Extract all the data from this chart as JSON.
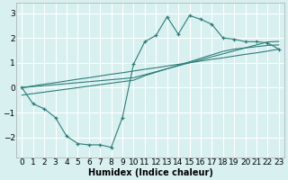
{
  "x": [
    0,
    1,
    2,
    3,
    4,
    5,
    6,
    7,
    8,
    9,
    10,
    11,
    12,
    13,
    14,
    15,
    16,
    17,
    18,
    19,
    20,
    21,
    22,
    23
  ],
  "y_main": [
    0.0,
    -0.65,
    -0.85,
    -1.2,
    -1.95,
    -2.25,
    -2.3,
    -2.3,
    -2.4,
    -1.2,
    0.95,
    1.85,
    2.1,
    2.85,
    2.15,
    2.9,
    2.75,
    2.55,
    2.0,
    1.95,
    1.85,
    1.85,
    1.8,
    1.55
  ],
  "y_line1": [
    -0.3,
    -0.24,
    -0.18,
    -0.12,
    -0.06,
    0.0,
    0.06,
    0.12,
    0.18,
    0.24,
    0.3,
    0.48,
    0.62,
    0.76,
    0.9,
    1.04,
    1.18,
    1.32,
    1.46,
    1.55,
    1.6,
    1.65,
    1.7,
    1.72
  ],
  "y_line2": [
    0.0,
    0.04,
    0.08,
    0.12,
    0.16,
    0.2,
    0.24,
    0.28,
    0.32,
    0.36,
    0.4,
    0.52,
    0.64,
    0.76,
    0.88,
    1.0,
    1.12,
    1.24,
    1.36,
    1.48,
    1.6,
    1.72,
    1.84,
    1.86
  ],
  "y_line3": [
    0.0,
    0.07,
    0.14,
    0.2,
    0.27,
    0.34,
    0.4,
    0.47,
    0.54,
    0.6,
    0.67,
    0.74,
    0.8,
    0.87,
    0.94,
    1.0,
    1.07,
    1.14,
    1.2,
    1.27,
    1.34,
    1.4,
    1.47,
    1.55
  ],
  "color": "#2d7d78",
  "bg_color": "#d8f0f0",
  "grid_color": "#ffffff",
  "xlabel": "Humidex (Indice chaleur)",
  "ylim": [
    -2.8,
    3.4
  ],
  "xlim": [
    -0.5,
    23.5
  ],
  "yticks": [
    -2,
    -1,
    0,
    1,
    2,
    3
  ],
  "xticks": [
    0,
    1,
    2,
    3,
    4,
    5,
    6,
    7,
    8,
    9,
    10,
    11,
    12,
    13,
    14,
    15,
    16,
    17,
    18,
    19,
    20,
    21,
    22,
    23
  ],
  "xlabel_fontsize": 7,
  "tick_fontsize": 6.5
}
